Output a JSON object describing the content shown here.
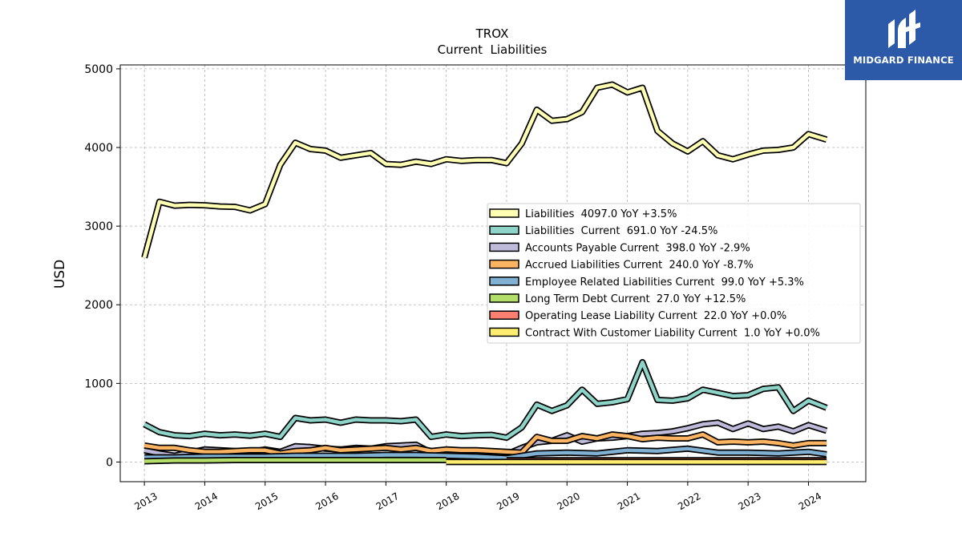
{
  "brand": {
    "name": "MIDGARD FINANCE",
    "color": "#2d5aa8"
  },
  "chart_data": {
    "type": "line",
    "title": "TROX",
    "subtitle": "Current  Liabilities",
    "xlabel": "",
    "ylabel": "USD",
    "xlim": [
      2012.6,
      2024.95
    ],
    "ylim": [
      -250,
      5050
    ],
    "x_ticks": [
      "2013",
      "2014",
      "2015",
      "2016",
      "2017",
      "2018",
      "2019",
      "2020",
      "2021",
      "2022",
      "2023",
      "2024"
    ],
    "y_ticks": [
      0,
      1000,
      2000,
      3000,
      4000,
      5000
    ],
    "grid": true,
    "legend_position": "center-right",
    "series": [
      {
        "name": "Liabilities  4097.0 YoY +3.5%",
        "color": "#ffffb3",
        "x": [
          2013.0,
          2013.25,
          2013.5,
          2013.75,
          2014.0,
          2014.25,
          2014.5,
          2014.75,
          2015.0,
          2015.25,
          2015.5,
          2015.75,
          2016.0,
          2016.25,
          2016.5,
          2016.75,
          2017.0,
          2017.25,
          2017.5,
          2017.75,
          2018.0,
          2018.25,
          2018.5,
          2018.75,
          2019.0,
          2019.25,
          2019.5,
          2019.75,
          2020.0,
          2020.25,
          2020.5,
          2020.75,
          2021.0,
          2021.25,
          2021.5,
          2021.75,
          2022.0,
          2022.25,
          2022.5,
          2022.75,
          2023.0,
          2023.25,
          2023.5,
          2023.75,
          2024.0,
          2024.3
        ],
        "values": [
          2600,
          3310,
          3260,
          3270,
          3265,
          3250,
          3245,
          3200,
          3280,
          3780,
          4060,
          3980,
          3960,
          3870,
          3900,
          3930,
          3790,
          3780,
          3820,
          3790,
          3850,
          3830,
          3840,
          3840,
          3800,
          4050,
          4480,
          4340,
          4360,
          4450,
          4760,
          4800,
          4700,
          4760,
          4210,
          4050,
          3950,
          4080,
          3900,
          3850,
          3910,
          3960,
          3970,
          4000,
          4170,
          4100
        ]
      },
      {
        "name": "Liabilities  Current  691.0 YoY -24.5%",
        "color": "#8dd3c7",
        "x": [
          2013.0,
          2013.25,
          2013.5,
          2013.75,
          2014.0,
          2014.25,
          2014.5,
          2014.75,
          2015.0,
          2015.25,
          2015.5,
          2015.75,
          2016.0,
          2016.25,
          2016.5,
          2016.75,
          2017.0,
          2017.25,
          2017.5,
          2017.75,
          2018.0,
          2018.25,
          2018.5,
          2018.75,
          2019.0,
          2019.25,
          2019.5,
          2019.75,
          2020.0,
          2020.25,
          2020.5,
          2020.75,
          2021.0,
          2021.25,
          2021.5,
          2021.75,
          2022.0,
          2022.25,
          2022.5,
          2022.75,
          2023.0,
          2023.25,
          2023.5,
          2023.75,
          2024.0,
          2024.3
        ],
        "values": [
          480,
          380,
          340,
          330,
          360,
          340,
          350,
          335,
          360,
          320,
          560,
          530,
          540,
          500,
          540,
          530,
          530,
          520,
          540,
          320,
          350,
          330,
          340,
          345,
          310,
          440,
          730,
          650,
          720,
          920,
          740,
          760,
          800,
          1270,
          790,
          780,
          810,
          920,
          880,
          840,
          850,
          930,
          950,
          650,
          780,
          690
        ]
      },
      {
        "name": "Accounts Payable Current  398.0 YoY -2.9%",
        "color": "#bebada",
        "x": [
          2013.0,
          2013.25,
          2013.5,
          2013.75,
          2014.0,
          2014.25,
          2014.5,
          2014.75,
          2015.0,
          2015.25,
          2015.5,
          2015.75,
          2016.0,
          2016.25,
          2016.5,
          2016.75,
          2017.0,
          2017.25,
          2017.5,
          2017.75,
          2018.0,
          2018.25,
          2018.5,
          2018.75,
          2019.0,
          2019.25,
          2019.5,
          2019.75,
          2020.0,
          2020.25,
          2020.5,
          2020.75,
          2021.0,
          2021.25,
          2021.5,
          2021.75,
          2022.0,
          2022.25,
          2022.5,
          2022.75,
          2023.0,
          2023.25,
          2023.5,
          2023.75,
          2024.0,
          2024.3
        ],
        "values": [
          150,
          110,
          80,
          120,
          160,
          150,
          140,
          130,
          160,
          130,
          200,
          190,
          170,
          160,
          180,
          170,
          200,
          210,
          220,
          120,
          130,
          120,
          110,
          120,
          100,
          180,
          250,
          270,
          340,
          260,
          300,
          310,
          330,
          360,
          370,
          390,
          430,
          480,
          500,
          420,
          490,
          420,
          450,
          390,
          470,
          398
        ]
      },
      {
        "name": "Accrued Liabilities Current  240.0 YoY -8.7%",
        "color": "#fdb462",
        "x": [
          2013.0,
          2013.25,
          2013.5,
          2013.75,
          2014.0,
          2014.25,
          2014.5,
          2014.75,
          2015.0,
          2015.25,
          2015.5,
          2015.75,
          2016.0,
          2016.25,
          2016.5,
          2016.75,
          2017.0,
          2017.25,
          2017.5,
          2017.75,
          2018.0,
          2018.25,
          2018.5,
          2018.75,
          2019.0,
          2019.25,
          2019.5,
          2019.75,
          2020.0,
          2020.25,
          2020.5,
          2020.75,
          2021.0,
          2021.25,
          2021.5,
          2021.75,
          2022.0,
          2022.25,
          2022.5,
          2022.75,
          2023.0,
          2023.25,
          2023.5,
          2023.75,
          2024.0,
          2024.3
        ],
        "values": [
          210,
          180,
          180,
          150,
          130,
          130,
          140,
          150,
          150,
          110,
          140,
          150,
          180,
          150,
          160,
          170,
          180,
          160,
          180,
          140,
          160,
          150,
          150,
          140,
          130,
          120,
          320,
          270,
          270,
          330,
          300,
          350,
          330,
          290,
          310,
          300,
          300,
          350,
          250,
          260,
          250,
          260,
          240,
          210,
          240,
          240
        ]
      },
      {
        "name": "Employee Related Liabilities Current  99.0 YoY +5.3%",
        "color": "#80b1d3",
        "x": [
          2013.0,
          2013.5,
          2014.0,
          2014.5,
          2015.0,
          2015.5,
          2016.0,
          2016.5,
          2017.0,
          2017.5,
          2018.0,
          2018.5,
          2019.0,
          2019.5,
          2020.0,
          2020.5,
          2021.0,
          2021.5,
          2022.0,
          2022.5,
          2023.0,
          2023.5,
          2024.0,
          2024.3
        ],
        "values": [
          60,
          60,
          70,
          70,
          70,
          80,
          80,
          80,
          90,
          90,
          80,
          70,
          50,
          110,
          120,
          110,
          150,
          140,
          170,
          120,
          120,
          110,
          130,
          99
        ]
      },
      {
        "name": "Long Term Debt Current  27.0 YoY +12.5%",
        "color": "#b3de69",
        "x": [
          2013.0,
          2013.5,
          2014.0,
          2014.5,
          2015.0,
          2015.5,
          2016.0,
          2016.5,
          2017.0,
          2017.5,
          2018.0
        ],
        "values": [
          10,
          20,
          20,
          25,
          25,
          25,
          25,
          25,
          25,
          25,
          25
        ]
      },
      {
        "name": "Operating Lease Liability Current  22.0 YoY +0.0%",
        "color": "#fb8072",
        "x": [
          2019.0,
          2019.5,
          2020.0,
          2020.5,
          2021.0,
          2021.5,
          2022.0,
          2022.5,
          2023.0,
          2023.5,
          2024.0,
          2024.3
        ],
        "values": [
          22,
          22,
          22,
          22,
          22,
          22,
          22,
          22,
          22,
          22,
          22,
          22
        ]
      },
      {
        "name": "Contract With Customer Liability Current  1.0 YoY +0.0%",
        "color": "#ffed6f",
        "x": [
          2018.0,
          2018.5,
          2019.0,
          2019.5,
          2020.0,
          2020.5,
          2021.0,
          2021.5,
          2022.0,
          2022.5,
          2023.0,
          2023.5,
          2024.0,
          2024.3
        ],
        "values": [
          1,
          1,
          1,
          1,
          1,
          1,
          1,
          1,
          1,
          1,
          1,
          1,
          1,
          1
        ]
      }
    ]
  }
}
